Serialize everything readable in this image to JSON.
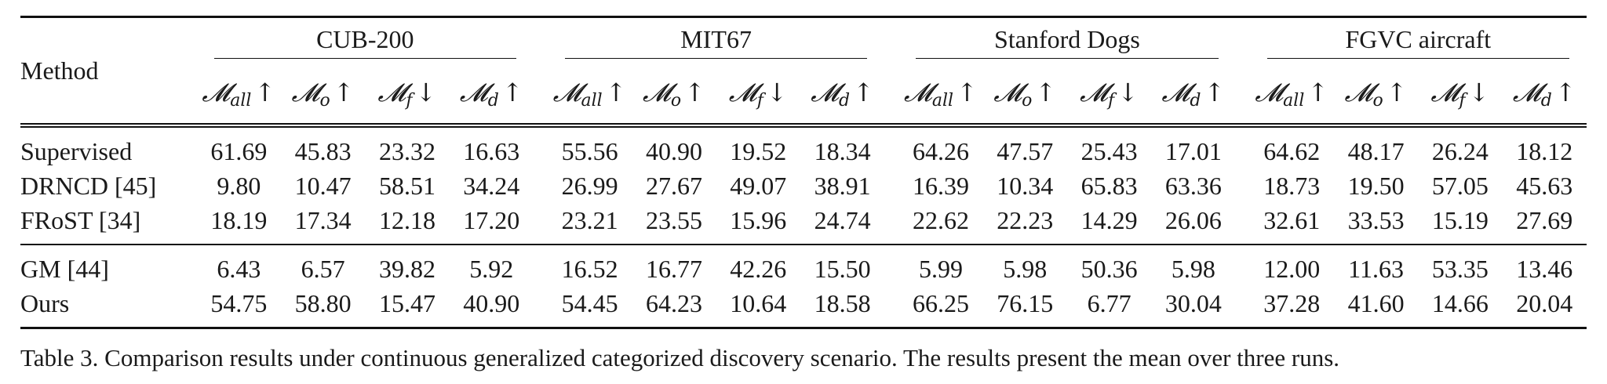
{
  "table": {
    "method_header": "Method",
    "groups": [
      "CUB-200",
      "MIT67",
      "Stanford Dogs",
      "FGVC aircraft"
    ],
    "metrics": [
      {
        "symbol": "M",
        "sub": "all",
        "arrow": "↑"
      },
      {
        "symbol": "M",
        "sub": "o",
        "arrow": "↑"
      },
      {
        "symbol": "M",
        "sub": "f",
        "arrow": "↓"
      },
      {
        "symbol": "M",
        "sub": "d",
        "arrow": "↑"
      }
    ],
    "blocks": [
      [
        {
          "method": "Supervised",
          "values": [
            "61.69",
            "45.83",
            "23.32",
            "16.63",
            "55.56",
            "40.90",
            "19.52",
            "18.34",
            "64.26",
            "47.57",
            "25.43",
            "17.01",
            "64.62",
            "48.17",
            "26.24",
            "18.12"
          ],
          "bold": false
        },
        {
          "method": "DRNCD [45]",
          "values": [
            "9.80",
            "10.47",
            "58.51",
            "34.24",
            "26.99",
            "27.67",
            "49.07",
            "38.91",
            "16.39",
            "10.34",
            "65.83",
            "63.36",
            "18.73",
            "19.50",
            "57.05",
            "45.63"
          ],
          "bold": false
        },
        {
          "method": "FRoST [34]",
          "values": [
            "18.19",
            "17.34",
            "12.18",
            "17.20",
            "23.21",
            "23.55",
            "15.96",
            "24.74",
            "22.62",
            "22.23",
            "14.29",
            "26.06",
            "32.61",
            "33.53",
            "15.19",
            "27.69"
          ],
          "bold": false
        }
      ],
      [
        {
          "method": "GM [44]",
          "values": [
            "6.43",
            "6.57",
            "39.82",
            "5.92",
            "16.52",
            "16.77",
            "42.26",
            "15.50",
            "5.99",
            "5.98",
            "50.36",
            "5.98",
            "12.00",
            "11.63",
            "53.35",
            "13.46"
          ],
          "bold": false
        },
        {
          "method": "Ours",
          "values": [
            "54.75",
            "58.80",
            "15.47",
            "40.90",
            "54.45",
            "64.23",
            "10.64",
            "18.58",
            "66.25",
            "76.15",
            "6.77",
            "30.04",
            "37.28",
            "41.60",
            "14.66",
            "20.04"
          ],
          "bold": true
        }
      ]
    ]
  },
  "caption": "Table 3. Comparison results under continuous generalized categorized discovery scenario. The results present the mean over three runs."
}
